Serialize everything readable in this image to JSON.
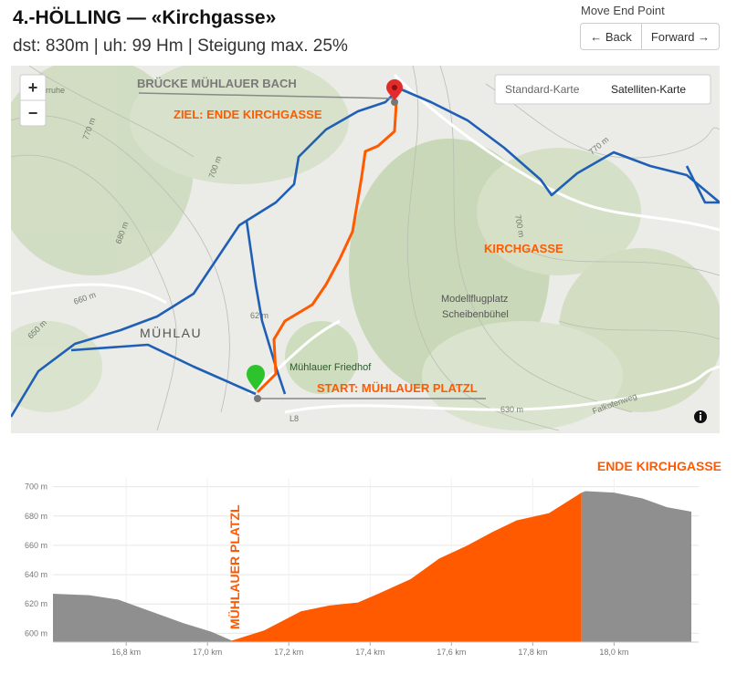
{
  "header": {
    "title": "4.-HÖLLING — «Kirchgasse»",
    "subtitle": "dst: 830m | uh: 99 Hm | Steigung max. 25%",
    "nav_label": "Move End Point",
    "back": "← Back",
    "forward": "Forward →"
  },
  "map": {
    "zoom_in": "+",
    "zoom_out": "−",
    "map_types": [
      "Standard-Karte",
      "Satelliten-Karte"
    ],
    "route_labels": [
      "BRÜCKE MÜHLAUER BACH",
      "ZIEL: ENDE KIRCHGASSE",
      "KIRCHGASSE",
      "START: MÜHLAUER PLATZL"
    ],
    "labels": [
      "MÜHLAU",
      "Mühlauer Friedhof",
      "Modellflugplatz",
      "Scheibenbühel",
      "630 m",
      "L8",
      "Falkofenweg",
      "770 m",
      "700 m",
      "680 m",
      "660 m",
      "650 m",
      "62 m",
      "770 m",
      "700 m",
      "gerruhe"
    ]
  },
  "chart_data": {
    "type": "area",
    "xlim": [
      16.62,
      18.19
    ],
    "ylim": [
      594,
      706
    ],
    "xticks": [
      {
        "value": 16.8,
        "label": "16,8 km"
      },
      {
        "value": 17.0,
        "label": "17,0 km"
      },
      {
        "value": 17.2,
        "label": "17,2 km"
      },
      {
        "value": 17.4,
        "label": "17,4 km"
      },
      {
        "value": 17.6,
        "label": "17,6 km"
      },
      {
        "value": 17.8,
        "label": "17,8 km"
      },
      {
        "value": 18.0,
        "label": "18,0 km"
      }
    ],
    "yticks": [
      {
        "value": 600,
        "label": "600 m"
      },
      {
        "value": 620,
        "label": "620 m"
      },
      {
        "value": 640,
        "label": "640 m"
      },
      {
        "value": 660,
        "label": "660 m"
      },
      {
        "value": 680,
        "label": "680 m"
      },
      {
        "value": 700,
        "label": "700 m"
      }
    ],
    "grid": true,
    "series": [
      {
        "color": "#8f8f8f",
        "x": [
          16.62,
          16.71,
          16.78,
          16.86,
          16.94,
          17.01,
          17.06
        ],
        "values": [
          627,
          626,
          623,
          615,
          607,
          601,
          595
        ]
      },
      {
        "color": "#ff5a00",
        "x": [
          17.06,
          17.14,
          17.23,
          17.3,
          17.37,
          17.42,
          17.5,
          17.57,
          17.64,
          17.7,
          17.76,
          17.84,
          17.92
        ],
        "values": [
          595,
          602,
          615,
          619,
          621,
          627,
          637,
          651,
          660,
          669,
          677,
          682,
          696
        ]
      },
      {
        "color": "#8f8f8f",
        "x": [
          17.92,
          17.93,
          18.0,
          18.07,
          18.13,
          18.19
        ],
        "values": [
          696,
          697,
          696,
          692,
          686,
          683
        ]
      }
    ],
    "annotations": [
      "MÜHLAUER PLATZL",
      "ENDE KIRCHGASSE"
    ]
  }
}
